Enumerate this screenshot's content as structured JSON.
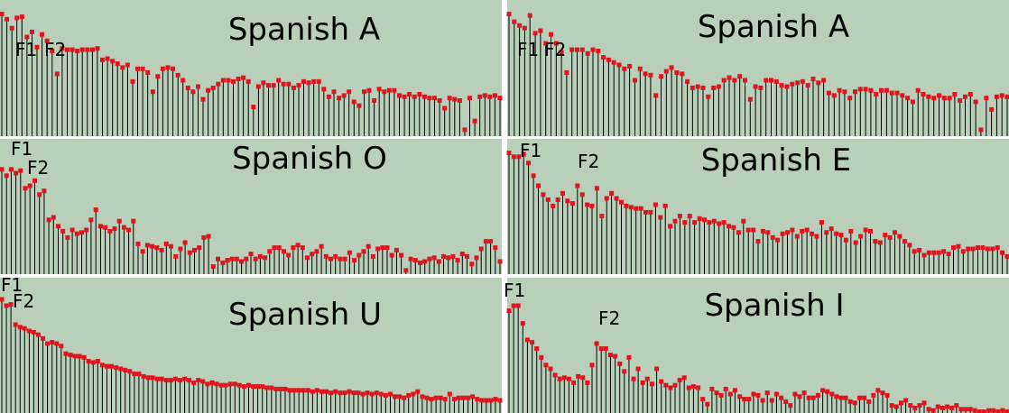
{
  "colors": {
    "background": "#b9cfba",
    "stem": "#000000",
    "marker": "#e0141c"
  },
  "chart_data": [
    {
      "type": "bar",
      "title": "Spanish A",
      "formant_labels": [
        "F1",
        "F2"
      ],
      "formant_positions": [
        4,
        10
      ],
      "values": [
        0.96,
        0.92,
        0.85,
        0.93,
        0.94,
        0.78,
        0.82,
        0.7,
        0.8,
        0.75,
        0.67,
        0.49,
        0.69,
        0.68,
        0.68,
        0.67,
        0.68,
        0.68,
        0.68,
        0.69,
        0.6,
        0.61,
        0.59,
        0.57,
        0.54,
        0.56,
        0.43,
        0.53,
        0.53,
        0.5,
        0.35,
        0.47,
        0.53,
        0.54,
        0.53,
        0.48,
        0.44,
        0.38,
        0.35,
        0.39,
        0.29,
        0.36,
        0.38,
        0.41,
        0.44,
        0.44,
        0.43,
        0.45,
        0.46,
        0.43,
        0.23,
        0.39,
        0.42,
        0.4,
        0.4,
        0.44,
        0.41,
        0.41,
        0.38,
        0.4,
        0.43,
        0.42,
        0.43,
        0.43,
        0.37,
        0.31,
        0.35,
        0.3,
        0.32,
        0.35,
        0.27,
        0.24,
        0.35,
        0.36,
        0.28,
        0.37,
        0.35,
        0.36,
        0.36,
        0.32,
        0.31,
        0.33,
        0.31,
        0.33,
        0.31,
        0.3,
        0.3,
        0.28,
        0.22,
        0.3,
        0.29,
        0.28,
        0.05,
        0.3,
        0.12,
        0.31,
        0.32,
        0.31,
        0.32,
        0.3
      ]
    },
    {
      "type": "bar",
      "title": "Spanish A",
      "formant_labels": [
        "F1",
        "F2"
      ],
      "formant_positions": [
        4,
        10
      ],
      "values": [
        0.96,
        0.9,
        0.87,
        0.85,
        0.95,
        0.81,
        0.83,
        0.73,
        0.8,
        0.73,
        0.66,
        0.5,
        0.68,
        0.68,
        0.68,
        0.65,
        0.68,
        0.67,
        0.62,
        0.6,
        0.58,
        0.56,
        0.53,
        0.55,
        0.44,
        0.53,
        0.49,
        0.48,
        0.32,
        0.47,
        0.51,
        0.54,
        0.5,
        0.49,
        0.43,
        0.38,
        0.39,
        0.38,
        0.31,
        0.38,
        0.39,
        0.44,
        0.46,
        0.44,
        0.47,
        0.44,
        0.29,
        0.39,
        0.38,
        0.44,
        0.44,
        0.43,
        0.4,
        0.39,
        0.41,
        0.42,
        0.43,
        0.4,
        0.45,
        0.42,
        0.44,
        0.34,
        0.32,
        0.36,
        0.35,
        0.3,
        0.35,
        0.37,
        0.37,
        0.36,
        0.33,
        0.36,
        0.36,
        0.34,
        0.34,
        0.32,
        0.3,
        0.27,
        0.36,
        0.33,
        0.31,
        0.3,
        0.32,
        0.3,
        0.3,
        0.33,
        0.28,
        0.31,
        0.33,
        0.27,
        0.05,
        0.3,
        0.21,
        0.31,
        0.32,
        0.31
      ]
    },
    {
      "type": "bar",
      "title": "Spanish O",
      "formant_labels": [
        "F1",
        "F2"
      ],
      "formant_positions": [
        3,
        7
      ],
      "values": [
        0.83,
        0.78,
        0.83,
        0.8,
        0.82,
        0.68,
        0.7,
        0.74,
        0.63,
        0.66,
        0.43,
        0.45,
        0.38,
        0.34,
        0.29,
        0.35,
        0.32,
        0.33,
        0.35,
        0.43,
        0.51,
        0.38,
        0.37,
        0.34,
        0.36,
        0.42,
        0.37,
        0.35,
        0.42,
        0.24,
        0.18,
        0.23,
        0.22,
        0.21,
        0.19,
        0.24,
        0.22,
        0.14,
        0.2,
        0.25,
        0.17,
        0.19,
        0.21,
        0.29,
        0.3,
        0.06,
        0.12,
        0.09,
        0.11,
        0.12,
        0.12,
        0.1,
        0.12,
        0.16,
        0.12,
        0.14,
        0.13,
        0.18,
        0.21,
        0.21,
        0.18,
        0.15,
        0.21,
        0.23,
        0.21,
        0.13,
        0.16,
        0.18,
        0.22,
        0.14,
        0.12,
        0.14,
        0.12,
        0.12,
        0.17,
        0.11,
        0.15,
        0.18,
        0.22,
        0.14,
        0.2,
        0.21,
        0.21,
        0.15,
        0.19,
        0.15,
        0.03,
        0.12,
        0.11,
        0.09,
        0.1,
        0.12,
        0.13,
        0.1,
        0.14,
        0.13,
        0.14,
        0.11,
        0.16,
        0.14,
        0.08,
        0.13,
        0.2,
        0.26,
        0.26,
        0.21,
        0.1
      ]
    },
    {
      "type": "bar",
      "title": "Spanish E",
      "formant_labels": [
        "F1",
        "F2"
      ],
      "formant_positions": [
        2,
        15
      ],
      "values": [
        0.96,
        0.93,
        0.93,
        0.95,
        0.88,
        0.78,
        0.7,
        0.63,
        0.59,
        0.54,
        0.59,
        0.64,
        0.58,
        0.56,
        0.7,
        0.63,
        0.55,
        0.54,
        0.68,
        0.46,
        0.6,
        0.64,
        0.6,
        0.57,
        0.54,
        0.53,
        0.52,
        0.52,
        0.49,
        0.49,
        0.55,
        0.45,
        0.54,
        0.38,
        0.42,
        0.46,
        0.41,
        0.46,
        0.41,
        0.44,
        0.43,
        0.41,
        0.42,
        0.4,
        0.41,
        0.38,
        0.37,
        0.33,
        0.42,
        0.35,
        0.35,
        0.26,
        0.34,
        0.33,
        0.29,
        0.27,
        0.32,
        0.33,
        0.35,
        0.3,
        0.34,
        0.35,
        0.32,
        0.3,
        0.41,
        0.33,
        0.36,
        0.32,
        0.31,
        0.27,
        0.34,
        0.25,
        0.3,
        0.35,
        0.34,
        0.26,
        0.25,
        0.31,
        0.29,
        0.33,
        0.3,
        0.26,
        0.23,
        0.18,
        0.19,
        0.15,
        0.17,
        0.17,
        0.17,
        0.18,
        0.16,
        0.21,
        0.22,
        0.18,
        0.2,
        0.2,
        0.21,
        0.21,
        0.2,
        0.2,
        0.21,
        0.17,
        0.14
      ]
    },
    {
      "type": "bar",
      "title": "Spanish U",
      "formant_labels": [
        "F1",
        "F2"
      ],
      "formant_positions": [
        1,
        3
      ],
      "values": [
        0.9,
        0.85,
        0.86,
        0.7,
        0.68,
        0.67,
        0.65,
        0.64,
        0.62,
        0.59,
        0.55,
        0.56,
        0.55,
        0.53,
        0.47,
        0.46,
        0.45,
        0.45,
        0.44,
        0.41,
        0.4,
        0.41,
        0.38,
        0.37,
        0.37,
        0.36,
        0.35,
        0.34,
        0.33,
        0.31,
        0.31,
        0.29,
        0.28,
        0.28,
        0.27,
        0.27,
        0.26,
        0.26,
        0.27,
        0.26,
        0.27,
        0.26,
        0.24,
        0.26,
        0.25,
        0.23,
        0.24,
        0.23,
        0.22,
        0.22,
        0.23,
        0.23,
        0.22,
        0.21,
        0.22,
        0.21,
        0.21,
        0.21,
        0.2,
        0.2,
        0.19,
        0.19,
        0.19,
        0.18,
        0.18,
        0.18,
        0.18,
        0.18,
        0.17,
        0.18,
        0.17,
        0.17,
        0.16,
        0.17,
        0.16,
        0.16,
        0.17,
        0.16,
        0.16,
        0.15,
        0.16,
        0.15,
        0.16,
        0.15,
        0.14,
        0.15,
        0.13,
        0.13,
        0.12,
        0.14,
        0.15,
        0.17,
        0.13,
        0.12,
        0.11,
        0.12,
        0.12,
        0.11,
        0.15,
        0.11,
        0.12,
        0.12,
        0.12,
        0.13,
        0.11,
        0.1,
        0.1,
        0.1,
        0.11,
        0.1
      ]
    },
    {
      "type": "bar",
      "title": "Spanish I",
      "formant_labels": [
        "F1",
        "F2"
      ],
      "formant_positions": [
        1,
        16
      ],
      "values": [
        0.81,
        0.85,
        0.85,
        0.71,
        0.58,
        0.56,
        0.51,
        0.44,
        0.38,
        0.35,
        0.3,
        0.27,
        0.28,
        0.27,
        0.24,
        0.29,
        0.28,
        0.24,
        0.38,
        0.55,
        0.51,
        0.51,
        0.46,
        0.45,
        0.39,
        0.33,
        0.44,
        0.27,
        0.35,
        0.24,
        0.27,
        0.23,
        0.35,
        0.25,
        0.22,
        0.2,
        0.22,
        0.26,
        0.28,
        0.2,
        0.21,
        0.2,
        0.11,
        0.07,
        0.19,
        0.16,
        0.14,
        0.19,
        0.15,
        0.18,
        0.13,
        0.11,
        0.11,
        0.15,
        0.14,
        0.1,
        0.16,
        0.1,
        0.15,
        0.12,
        0.09,
        0.06,
        0.15,
        0.13,
        0.16,
        0.12,
        0.12,
        0.14,
        0.18,
        0.17,
        0.15,
        0.13,
        0.12,
        0.12,
        0.09,
        0.08,
        0.12,
        0.12,
        0.09,
        0.14,
        0.18,
        0.16,
        0.14,
        0.06,
        0.05,
        0.08,
        0.1,
        0.06,
        0.04,
        0.06,
        0.08,
        0.03,
        0.02,
        0.05,
        0.04,
        0.05,
        0.04,
        0.06,
        0.03,
        0.03,
        0.03,
        0.02,
        0.01,
        0.01,
        0.02,
        0.02,
        0.01,
        0.02,
        0.01
      ]
    }
  ]
}
